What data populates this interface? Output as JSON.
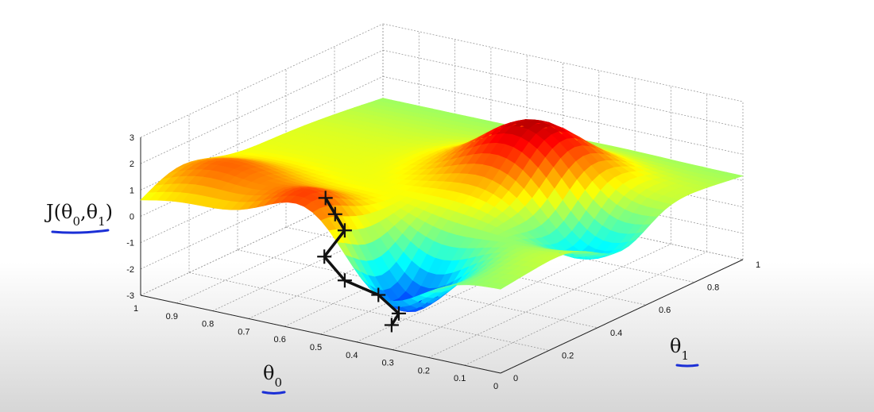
{
  "chart_data": {
    "type": "surface",
    "title": "",
    "zlabel": "J(θ0,θ1)",
    "xlabel": "θ0",
    "ylabel": "θ1",
    "xlim": [
      0,
      1
    ],
    "ylim": [
      0,
      1
    ],
    "zlim": [
      -3,
      3
    ],
    "x_ticks": [
      "1",
      "0.9",
      "0.8",
      "0.7",
      "0.6",
      "0.5",
      "0.4",
      "0.3",
      "0.2",
      "0.1",
      "0"
    ],
    "y_ticks": [
      "0",
      "0.2",
      "0.4",
      "0.6",
      "0.8",
      "1"
    ],
    "z_ticks": [
      "3",
      "2",
      "1",
      "0",
      "-1",
      "-2",
      "-3"
    ],
    "grid": true,
    "colormap": "jet",
    "colors": {
      "underline": "#1b2fd6",
      "path": "#111111"
    },
    "surface_features": [
      {
        "kind": "peak",
        "theta0": 0.52,
        "theta1": 0.05,
        "J": 2.4
      },
      {
        "kind": "peak",
        "theta0": 0.35,
        "theta1": 0.65,
        "J": 2.5
      },
      {
        "kind": "peak",
        "theta0": 0.88,
        "theta1": 0.15,
        "J": 1.5
      },
      {
        "kind": "valley",
        "theta0": 0.35,
        "theta1": 0.1,
        "J": -3.0
      },
      {
        "kind": "valley",
        "theta0": 0.1,
        "theta1": 0.5,
        "J": -1.6
      }
    ],
    "descent_path": [
      {
        "theta0": 0.52,
        "theta1": 0.05,
        "J": 1.9
      },
      {
        "theta0": 0.5,
        "theta1": 0.06,
        "J": 1.3
      },
      {
        "theta0": 0.48,
        "theta1": 0.07,
        "J": 0.7
      },
      {
        "theta0": 0.53,
        "theta1": 0.06,
        "J": -0.4
      },
      {
        "theta0": 0.48,
        "theta1": 0.07,
        "J": -1.2
      },
      {
        "theta0": 0.4,
        "theta1": 0.09,
        "J": -1.6
      },
      {
        "theta0": 0.35,
        "theta1": 0.1,
        "J": -2.2
      },
      {
        "theta0": 0.37,
        "theta1": 0.1,
        "J": -2.7
      }
    ]
  }
}
